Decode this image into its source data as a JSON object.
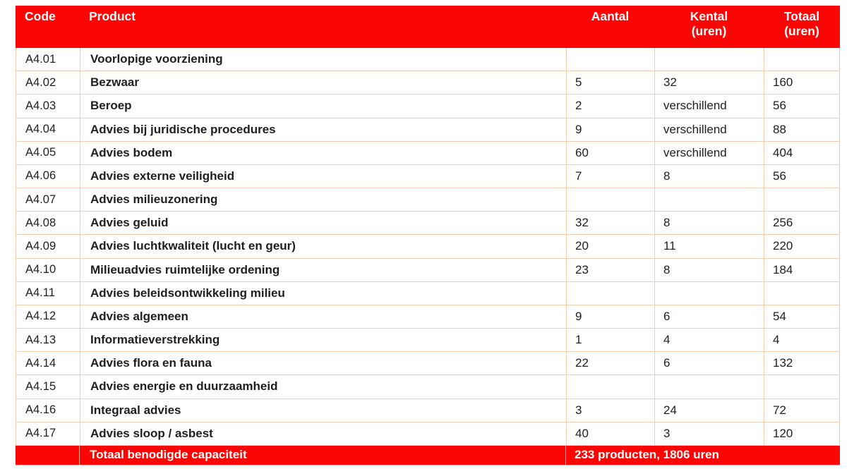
{
  "table": {
    "columns": [
      {
        "label": "Code",
        "sub": ""
      },
      {
        "label": "Product",
        "sub": ""
      },
      {
        "label": "Aantal",
        "sub": ""
      },
      {
        "label": "Kental",
        "sub": "(uren)"
      },
      {
        "label": "Totaal",
        "sub": "(uren)"
      }
    ],
    "rows": [
      {
        "code": "A4.01",
        "product": "Voorlopige voorziening",
        "aantal": "",
        "kental": "",
        "totaal": ""
      },
      {
        "code": "A4.02",
        "product": "Bezwaar",
        "aantal": "5",
        "kental": "32",
        "totaal": "160"
      },
      {
        "code": "A4.03",
        "product": "Beroep",
        "aantal": "2",
        "kental": "verschillend",
        "totaal": "56"
      },
      {
        "code": "A4.04",
        "product": "Advies bij juridische procedures",
        "aantal": "9",
        "kental": "verschillend",
        "totaal": "88"
      },
      {
        "code": "A4.05",
        "product": "Advies bodem",
        "aantal": "60",
        "kental": "verschillend",
        "totaal": "404"
      },
      {
        "code": "A4.06",
        "product": "Advies externe veiligheid",
        "aantal": "7",
        "kental": "8",
        "totaal": "56"
      },
      {
        "code": "A4.07",
        "product": "Advies milieuzonering",
        "aantal": "",
        "kental": "",
        "totaal": ""
      },
      {
        "code": "A4.08",
        "product": "Advies geluid",
        "aantal": "32",
        "kental": "8",
        "totaal": "256"
      },
      {
        "code": "A4.09",
        "product": "Advies luchtkwaliteit (lucht en geur)",
        "aantal": "20",
        "kental": "11",
        "totaal": "220"
      },
      {
        "code": "A4.10",
        "product": "Milieuadvies ruimtelijke ordening",
        "aantal": "23",
        "kental": "8",
        "totaal": "184"
      },
      {
        "code": "A4.11",
        "product": "Advies beleidsontwikkeling milieu",
        "aantal": "",
        "kental": "",
        "totaal": ""
      },
      {
        "code": "A4.12",
        "product": "Advies algemeen",
        "aantal": "9",
        "kental": "6",
        "totaal": "54"
      },
      {
        "code": "A4.13",
        "product": "Informatieverstrekking",
        "aantal": "1",
        "kental": "4",
        "totaal": "4"
      },
      {
        "code": "A4.14",
        "product": "Advies flora en fauna",
        "aantal": "22",
        "kental": "6",
        "totaal": "132"
      },
      {
        "code": "A4.15",
        "product": "Advies energie en duurzaamheid",
        "aantal": "",
        "kental": "",
        "totaal": ""
      },
      {
        "code": "A4.16",
        "product": "Integraal advies",
        "aantal": "3",
        "kental": "24",
        "totaal": "72"
      },
      {
        "code": "A4.17",
        "product": "Advies sloop / asbest",
        "aantal": "40",
        "kental": "3",
        "totaal": "120"
      }
    ],
    "footer": {
      "label": "Totaal benodigde capaciteit",
      "value": "233 producten, 1806 uren"
    }
  },
  "colors": {
    "header_red": "#fb0505",
    "grid_border": "#f2cdb2",
    "body_text": "#1f1f1f"
  }
}
